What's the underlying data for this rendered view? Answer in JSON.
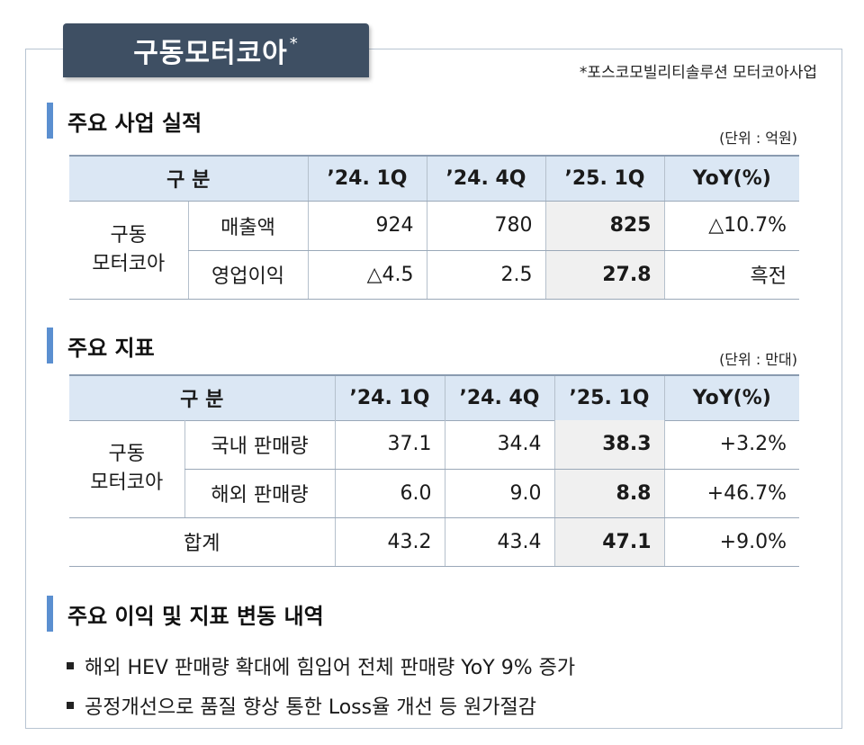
{
  "header": {
    "title": "구동모터코아",
    "title_mark": "*",
    "footnote": "*포스코모빌리티솔루션 모터코아사업"
  },
  "section1": {
    "title": "주요 사업 실적",
    "unit": "(단위 : 억원)",
    "columns": [
      "구 분",
      "’24. 1Q",
      "’24. 4Q",
      "’25. 1Q",
      "YoY(%)"
    ],
    "group_line1": "구동",
    "group_line2": "모터코아",
    "rows": [
      {
        "label": "매출액",
        "q1_24": "924",
        "q4_24": "780",
        "q1_25": "825",
        "yoy": "△10.7%"
      },
      {
        "label": "영업이익",
        "q1_24": "△4.5",
        "q4_24": "2.5",
        "q1_25": "27.8",
        "yoy": "흑전"
      }
    ]
  },
  "section2": {
    "title": "주요 지표",
    "unit": "(단위 : 만대)",
    "columns": [
      "구 분",
      "’24. 1Q",
      "’24. 4Q",
      "’25. 1Q",
      "YoY(%)"
    ],
    "group_line1": "구동",
    "group_line2": "모터코아",
    "rows": [
      {
        "label": "국내 판매량",
        "q1_24": "37.1",
        "q4_24": "34.4",
        "q1_25": "38.3",
        "yoy": "+3.2%"
      },
      {
        "label": "해외 판매량",
        "q1_24": "6.0",
        "q4_24": "9.0",
        "q1_25": "8.8",
        "yoy": "+46.7%"
      }
    ],
    "total": {
      "label": "합계",
      "q1_24": "43.2",
      "q4_24": "43.4",
      "q1_25": "47.1",
      "yoy": "+9.0%"
    }
  },
  "section3": {
    "title": "주요 이익 및 지표 변동 내역",
    "bullets": [
      "해외 HEV 판매량 확대에 힘입어 전체 판매량 YoY 9% 증가",
      "공정개선으로 품질 향상 통한 Loss율 개선 등 원가절감"
    ]
  }
}
